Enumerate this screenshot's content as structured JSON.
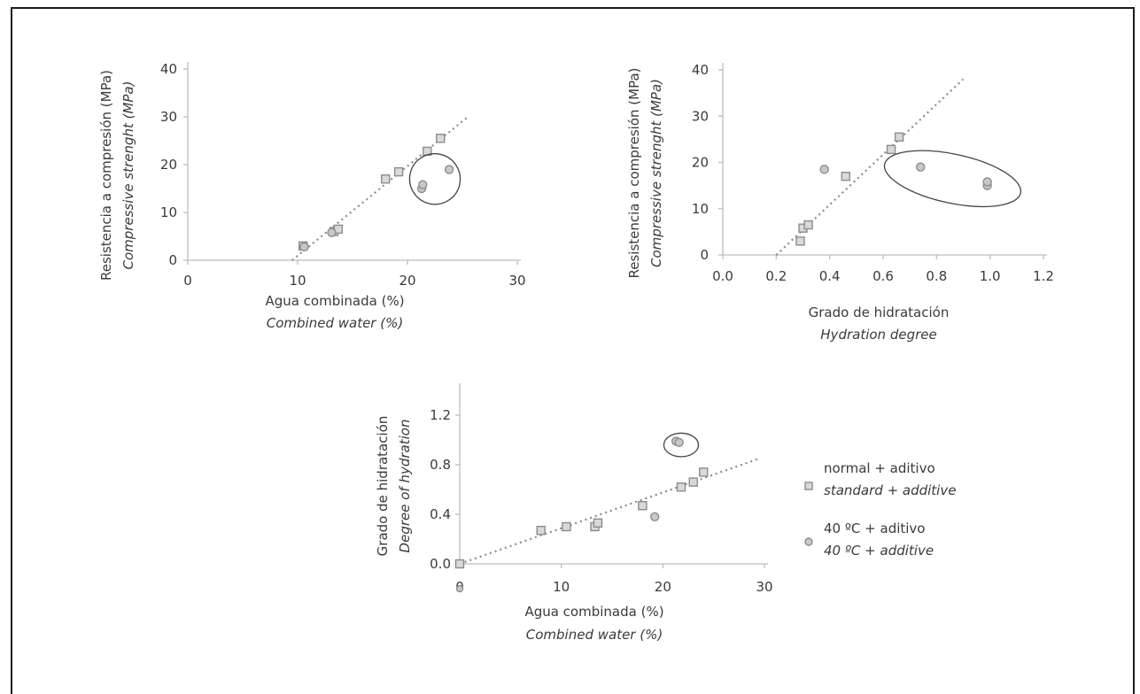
{
  "chart_data": [
    {
      "type": "scatter",
      "xlabel": [
        "Agua combinada (%)",
        "Combined water (%)"
      ],
      "ylabel": [
        "Resistencia a compresión (MPa)",
        "Compressive strenght (MPa)"
      ],
      "xlim": [
        0,
        30
      ],
      "ylim": [
        0,
        40
      ],
      "xticks": [
        "0",
        "10",
        "20",
        "30"
      ],
      "yticks": [
        "0",
        "10",
        "20",
        "30",
        "40"
      ],
      "series": [
        {
          "name_ref": 0,
          "points": [
            [
              10.5,
              3
            ],
            [
              13.3,
              6
            ],
            [
              13.7,
              6.5
            ],
            [
              18,
              17
            ],
            [
              19.2,
              18.5
            ],
            [
              21.8,
              22.8
            ],
            [
              23,
              25.5
            ]
          ]
        },
        {
          "name_ref": 1,
          "points": [
            [
              10.6,
              2.8
            ],
            [
              13.1,
              5.8
            ],
            [
              21.3,
              15
            ],
            [
              21.4,
              15.8
            ],
            [
              23.8,
              19
            ]
          ]
        }
      ],
      "trendline": [
        [
          9.5,
          0
        ],
        [
          25.5,
          30
        ]
      ],
      "circled": {
        "cx": 22.5,
        "cy": 17,
        "rx": 2.3,
        "ry": 5.3
      }
    },
    {
      "type": "scatter",
      "xlabel": [
        "Grado de hidratación",
        "Hydration degree"
      ],
      "ylabel": [
        "Resistencia a compresión (MPa)",
        "Compressive strenght (MPa)"
      ],
      "xlim": [
        0,
        1.2
      ],
      "ylim": [
        0,
        40
      ],
      "xticks": [
        "0.0",
        "0.2",
        "0.4",
        "0.6",
        "0.8",
        "1.0",
        "1.2"
      ],
      "yticks": [
        "0",
        "10",
        "20",
        "30",
        "40"
      ],
      "series": [
        {
          "name_ref": 0,
          "points": [
            [
              0.29,
              3
            ],
            [
              0.3,
              5.8
            ],
            [
              0.32,
              6.5
            ],
            [
              0.46,
              17
            ],
            [
              0.63,
              22.8
            ],
            [
              0.66,
              25.5
            ]
          ]
        },
        {
          "name_ref": 1,
          "points": [
            [
              0.38,
              18.5
            ],
            [
              0.74,
              19
            ],
            [
              0.99,
              15
            ],
            [
              0.99,
              15.8
            ]
          ]
        }
      ],
      "trendline": [
        [
          0.2,
          0
        ],
        [
          0.9,
          38
        ]
      ],
      "circled": {
        "cx": 0.86,
        "cy": 16.5,
        "rx": 0.26,
        "ry": 5.3
      }
    },
    {
      "type": "scatter",
      "xlabel": [
        "Agua combinada (%)",
        "Combined water (%)"
      ],
      "ylabel": [
        "Grado de hidratación",
        "Degree of hydration"
      ],
      "xlim": [
        0,
        30
      ],
      "ylim": [
        0,
        1.4
      ],
      "xticks": [
        "0",
        "10",
        "20",
        "30"
      ],
      "yticks": [
        "0.0",
        "0.4",
        "0.8",
        "1.2"
      ],
      "series": [
        {
          "name_ref": 0,
          "points": [
            [
              0,
              0
            ],
            [
              8,
              0.27
            ],
            [
              10.5,
              0.3
            ],
            [
              13.3,
              0.3
            ],
            [
              13.6,
              0.33
            ],
            [
              18,
              0.47
            ],
            [
              21.8,
              0.62
            ],
            [
              23,
              0.66
            ],
            [
              24,
              0.74
            ]
          ]
        },
        {
          "name_ref": 1,
          "points": [
            [
              19.2,
              0.38
            ],
            [
              21.3,
              0.99
            ],
            [
              21.6,
              0.98
            ]
          ]
        }
      ],
      "offscale_points": [
        {
          "name_ref": 1,
          "x": 0
        }
      ],
      "trendline": [
        [
          0,
          0
        ],
        [
          29.5,
          0.85
        ]
      ],
      "circled": {
        "cx": 21.8,
        "cy": 0.96,
        "rx": 1.7,
        "ry": 0.095
      }
    }
  ],
  "legend": {
    "placement": "right of bottom chart",
    "entries": [
      {
        "label": "normal + aditivo",
        "label_en": "standard + additive",
        "marker": "square"
      },
      {
        "label": "40 ºC + aditivo",
        "label_en": "40 ºC + additive",
        "marker": "circle"
      }
    ]
  },
  "colors": {
    "marker_fill": "#d9d9d9",
    "marker_stroke": "#8c8c8c",
    "trend": "#8a8a8a",
    "axis": "#bdbdbd",
    "frame": "#1a1a1a"
  }
}
